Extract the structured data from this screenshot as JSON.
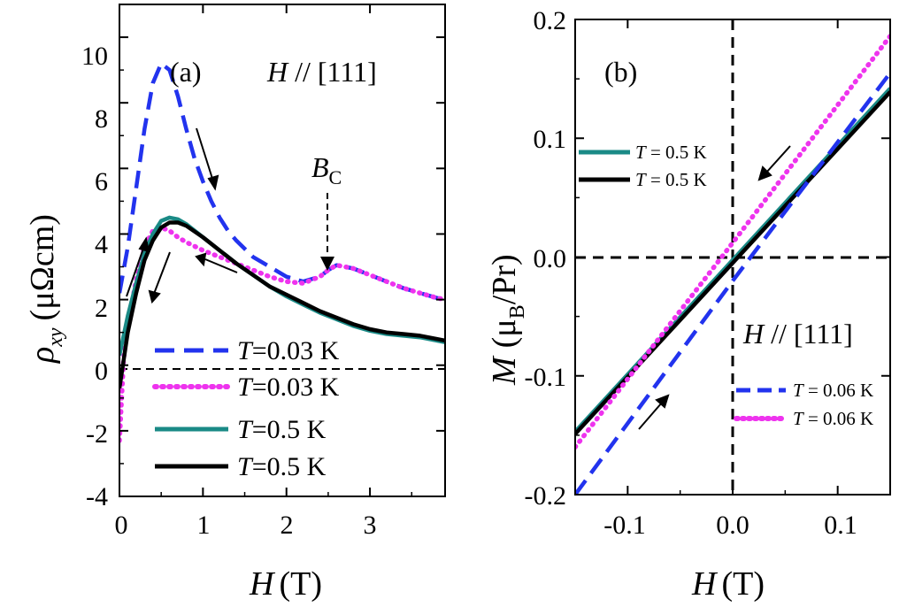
{
  "chart_data": [
    {
      "panel": "(a)",
      "type": "line",
      "annotation": "H // [111]",
      "marker_label": "B",
      "marker_label_sub": "C",
      "marker_at_x": 2.5,
      "xlabel": "H",
      "xlabel_unit": "(T)",
      "ylabel": "ρ",
      "ylabel_sub": "xy",
      "ylabel_unit": "(μΩcm)",
      "xlim": [
        0,
        3.9
      ],
      "ylim": [
        -4,
        11
      ],
      "xticks": [
        "0",
        "1",
        "2",
        "3"
      ],
      "yticks": [
        "-4",
        "-2",
        "0",
        "2",
        "4",
        "6",
        "8",
        "10"
      ],
      "zero_line": true,
      "series": [
        {
          "name": "T=0.03 K",
          "legend_italic": "T",
          "legend_text": "=0.03 K",
          "color": "#2233ee",
          "style": "dashed",
          "x": [
            0,
            0.1,
            0.2,
            0.3,
            0.4,
            0.5,
            0.6,
            0.7,
            0.8,
            0.9,
            1.0,
            1.1,
            1.2,
            1.3,
            1.4,
            1.6,
            1.8,
            2.0,
            2.2,
            2.4,
            2.5,
            2.6,
            2.7,
            2.8,
            2.9,
            3.0,
            3.2,
            3.4,
            3.6,
            3.8,
            3.9
          ],
          "y": [
            2.2,
            3.6,
            5.4,
            7.2,
            8.6,
            9.2,
            9.0,
            8.2,
            7.2,
            6.3,
            5.6,
            5.0,
            4.5,
            4.1,
            3.8,
            3.3,
            3.0,
            2.7,
            2.55,
            2.7,
            2.9,
            3.05,
            3.0,
            2.95,
            2.85,
            2.75,
            2.55,
            2.35,
            2.2,
            2.05,
            2.0
          ]
        },
        {
          "name": "T=0.03 K",
          "legend_italic": "T",
          "legend_text": "=0.03 K",
          "color": "#ee33ee",
          "style": "dotted",
          "x": [
            0,
            0.05,
            0.1,
            0.2,
            0.3,
            0.4,
            0.5,
            0.6,
            0.7,
            0.8,
            1.0,
            1.2,
            1.4,
            1.6,
            1.8,
            2.0,
            2.2,
            2.4,
            2.5,
            2.6,
            2.7,
            2.8,
            3.0,
            3.2,
            3.4,
            3.6,
            3.8,
            3.9
          ],
          "y": [
            -2.3,
            0.2,
            1.2,
            2.6,
            3.6,
            4.1,
            4.2,
            4.1,
            3.9,
            3.75,
            3.5,
            3.3,
            3.1,
            2.9,
            2.7,
            2.55,
            2.5,
            2.7,
            2.9,
            3.05,
            3.0,
            2.95,
            2.75,
            2.55,
            2.35,
            2.2,
            2.05,
            2.0
          ]
        },
        {
          "name": "T=0.5 K",
          "legend_italic": "T",
          "legend_text": "=0.5 K",
          "color": "#1a8a86",
          "style": "solid",
          "x": [
            0,
            0.1,
            0.2,
            0.3,
            0.4,
            0.5,
            0.6,
            0.7,
            0.8,
            1.0,
            1.2,
            1.4,
            1.6,
            1.8,
            2.0,
            2.2,
            2.4,
            2.6,
            2.8,
            3.0,
            3.2,
            3.4,
            3.6,
            3.8,
            3.9
          ],
          "y": [
            0.3,
            1.5,
            2.5,
            3.4,
            4.0,
            4.4,
            4.5,
            4.45,
            4.3,
            3.9,
            3.5,
            3.1,
            2.75,
            2.4,
            2.1,
            1.85,
            1.6,
            1.4,
            1.2,
            1.05,
            0.95,
            0.9,
            0.85,
            0.75,
            0.7
          ]
        },
        {
          "name": "T=0.5 K",
          "legend_italic": "T",
          "legend_text": "=0.5 K",
          "color": "#000000",
          "style": "solid",
          "x": [
            0,
            0.1,
            0.2,
            0.3,
            0.4,
            0.5,
            0.6,
            0.7,
            0.8,
            1.0,
            1.2,
            1.4,
            1.6,
            1.8,
            2.0,
            2.2,
            2.4,
            2.6,
            2.8,
            3.0,
            3.2,
            3.4,
            3.6,
            3.8,
            3.9
          ],
          "y": [
            -0.7,
            1.0,
            2.2,
            3.2,
            3.8,
            4.2,
            4.35,
            4.35,
            4.25,
            3.9,
            3.5,
            3.1,
            2.75,
            2.4,
            2.15,
            1.9,
            1.65,
            1.45,
            1.25,
            1.1,
            1.0,
            0.95,
            0.9,
            0.8,
            0.75
          ]
        }
      ]
    },
    {
      "panel": "(b)",
      "type": "line",
      "annotation": "H // [111]",
      "xlabel": "H",
      "xlabel_unit": "(T)",
      "ylabel": "M",
      "ylabel_inner": "(μ",
      "ylabel_sub": "B",
      "ylabel_unit": "/Pr)",
      "xlim": [
        -0.15,
        0.15
      ],
      "ylim": [
        -0.2,
        0.2
      ],
      "xticks": [
        "-0.1",
        "0.0",
        "0.1"
      ],
      "xtick_values": [
        -0.1,
        0.0,
        0.1
      ],
      "yticks": [
        "-0.2",
        "-0.1",
        "0.0",
        "0.1",
        "0.2"
      ],
      "ytick_values": [
        -0.2,
        -0.1,
        0.0,
        0.1,
        0.2
      ],
      "zero_lines": true,
      "series": [
        {
          "name": "T = 0.5 K",
          "legend_italic": "T",
          "legend_text": " = 0.5 K",
          "color": "#1a8a86",
          "style": "solid",
          "x": [
            -0.15,
            0.15
          ],
          "y": [
            -0.147,
            0.142
          ]
        },
        {
          "name": "T = 0.5 K",
          "legend_italic": "T",
          "legend_text": " = 0.5 K",
          "color": "#000000",
          "style": "solid",
          "x": [
            -0.15,
            0.15
          ],
          "y": [
            -0.149,
            0.139
          ]
        },
        {
          "name": "T = 0.06 K",
          "legend_italic": "T",
          "legend_text": " = 0.06 K",
          "color": "#2233ee",
          "style": "dashed",
          "x": [
            -0.15,
            0.0,
            0.15
          ],
          "y": [
            -0.2,
            -0.02,
            0.155
          ]
        },
        {
          "name": "T = 0.06 K",
          "legend_italic": "T",
          "legend_text": " = 0.06 K",
          "color": "#ee33ee",
          "style": "dotted",
          "x": [
            -0.15,
            0.0,
            0.15
          ],
          "y": [
            -0.16,
            0.012,
            0.186
          ]
        }
      ]
    }
  ]
}
